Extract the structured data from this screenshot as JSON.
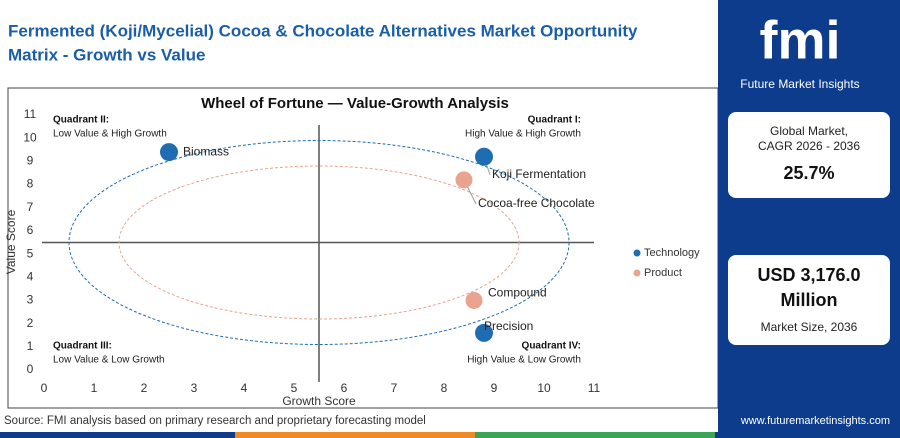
{
  "header": {
    "title_line1": "Fermented (Koji/Mycelial) Cocoa & Chocolate Alternatives Market Opportunity",
    "title_line2": "Matrix - Growth vs Value"
  },
  "sidebar": {
    "logo": "fmi",
    "brand": "Future Market Insights",
    "card1_label_line1": "Global Market,",
    "card1_label_line2": "CAGR 2026 - 2036",
    "card1_value": "25.7%",
    "card2_value_line1": "USD 3,176.0",
    "card2_value_line2": "Million",
    "card2_label": "Market Size, 2036"
  },
  "footer": {
    "source": "Source: FMI analysis based on primary research and proprietary forecasting model",
    "url": "www.futuremarketinsights.com"
  },
  "chart_data": {
    "type": "scatter",
    "title": "Wheel of Fortune — Value-Growth Analysis",
    "xlabel": "Growth Score",
    "ylabel": "Value Score",
    "xlim": [
      0,
      11
    ],
    "ylim": [
      0,
      11
    ],
    "xticks": [
      0,
      1,
      2,
      3,
      4,
      5,
      6,
      7,
      8,
      9,
      10,
      11
    ],
    "yticks": [
      0,
      1,
      2,
      3,
      4,
      5,
      6,
      7,
      8,
      9,
      10,
      11
    ],
    "series": [
      {
        "name": "Technology",
        "color": "#1f6db0",
        "x": [
          2.5,
          8.8,
          8.8
        ],
        "values": [
          9.4,
          9.2,
          1.6
        ],
        "labels": [
          "Biomass",
          "Koji Fermentation",
          "Precision"
        ]
      },
      {
        "name": "Product",
        "color": "#e9a38f",
        "x": [
          8.4,
          8.6
        ],
        "values": [
          8.2,
          3.0
        ],
        "labels": [
          "Cocoa-free Chocolate",
          "Compound"
        ]
      }
    ],
    "quadrants": [
      {
        "title": "Quadrant II:",
        "subtitle": "Low Value & High Growth"
      },
      {
        "title": "Quadrant I:",
        "subtitle": "High Value & High Growth"
      },
      {
        "title": "Quadrant III:",
        "subtitle": "Low Value & Low Growth"
      },
      {
        "title": "Quadrant IV:",
        "subtitle": "High Value & Low Growth"
      }
    ]
  }
}
